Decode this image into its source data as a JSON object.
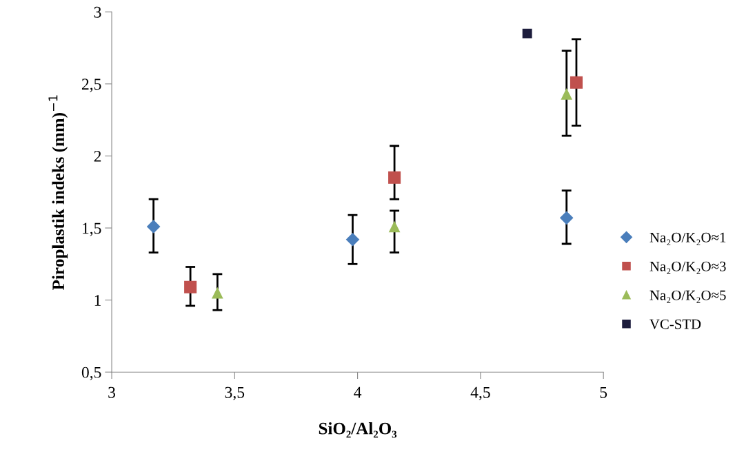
{
  "chart_data": {
    "type": "scatter",
    "xlabel": "SiO₂/Al₂O₃",
    "ylabel": "Piroplastik indeks (mm)$^{−1}$",
    "xlim": [
      3,
      5
    ],
    "xticks": [
      3,
      {
        "value": 3.5,
        "label": "3,5"
      },
      4,
      {
        "value": 4.5,
        "label": "4,5"
      },
      5
    ],
    "ylim": [
      0.5,
      3
    ],
    "yticks": [
      {
        "value": 0.5,
        "label": "0,5"
      },
      1,
      {
        "value": 1.5,
        "label": "1,5"
      },
      2,
      {
        "value": 2.5,
        "label": "2,5"
      },
      3
    ],
    "grid": false,
    "legend": "right",
    "series": [
      {
        "name": "Na₂O/K₂O≈1",
        "color": "#4a7ebb",
        "marker": "diamond",
        "x": [
          3.17,
          3.98,
          4.85
        ],
        "values": [
          1.51,
          1.42,
          1.57
        ],
        "errors": [
          [
            1.33,
            1.7
          ],
          [
            1.25,
            1.59
          ],
          [
            1.39,
            1.76
          ]
        ]
      },
      {
        "name": "Na₂O/K₂O≈3",
        "color": "#c0504d",
        "marker": "square",
        "x": [
          3.32,
          4.15,
          4.89
        ],
        "values": [
          1.09,
          1.85,
          2.51
        ],
        "errors": [
          [
            0.96,
            1.23
          ],
          [
            1.7,
            2.07
          ],
          [
            2.21,
            2.81
          ]
        ]
      },
      {
        "name": "Na₂O/K₂O≈5",
        "color": "#9bbb59",
        "marker": "triangle",
        "x": [
          3.43,
          4.15,
          4.85
        ],
        "values": [
          1.05,
          1.51,
          2.43
        ],
        "errors": [
          [
            0.93,
            1.18
          ],
          [
            1.33,
            1.62
          ],
          [
            2.14,
            2.73
          ]
        ]
      },
      {
        "name": "VC-STD",
        "color": "#1c1c3c",
        "marker": "square",
        "x": [
          4.69
        ],
        "values": [
          2.85
        ]
      }
    ]
  }
}
